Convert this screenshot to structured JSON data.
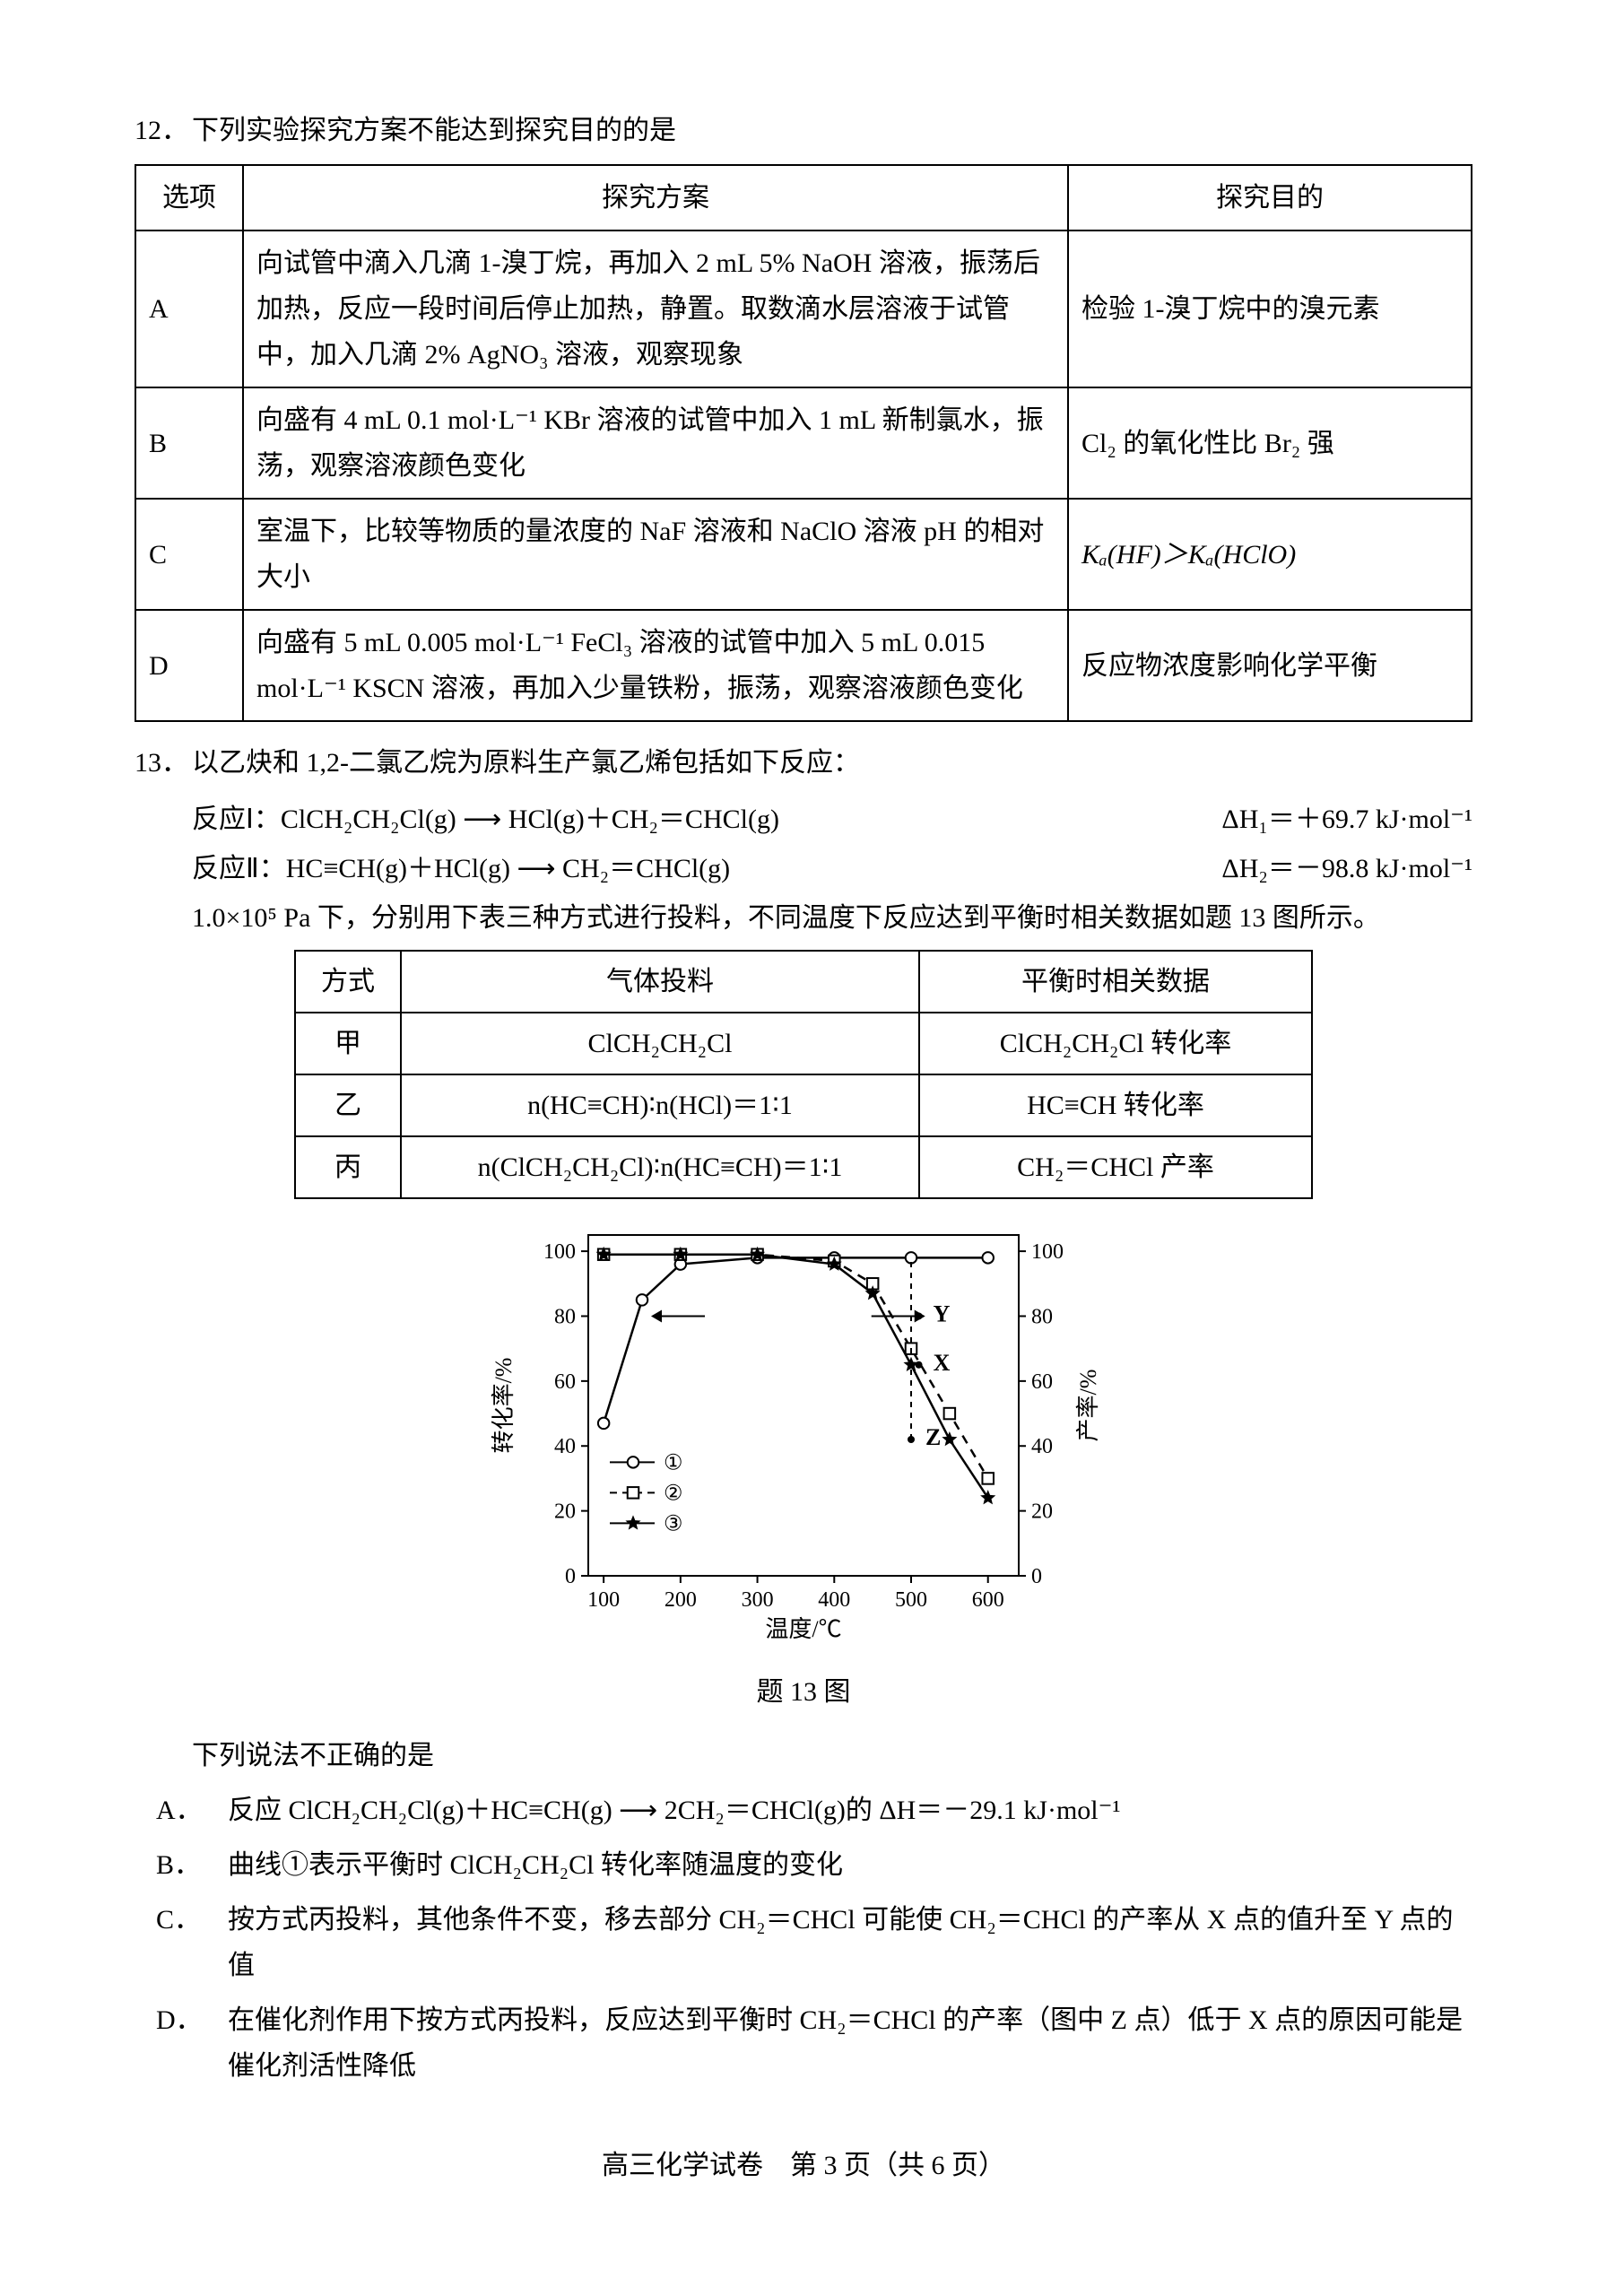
{
  "q12": {
    "number": "12．",
    "stem": "下列实验探究方案不能达到探究目的的是",
    "headers": [
      "选项",
      "探究方案",
      "探究目的"
    ],
    "rows": [
      {
        "opt": "A",
        "plan": "向试管中滴入几滴 1-溴丁烷，再加入 2 mL 5% NaOH 溶液，振荡后加热，反应一段时间后停止加热，静置。取数滴水层溶液于试管中，加入几滴 2% AgNO₃ 溶液，观察现象",
        "goal": "检验 1-溴丁烷中的溴元素"
      },
      {
        "opt": "B",
        "plan": "向盛有 4 mL 0.1 mol·L⁻¹ KBr 溶液的试管中加入 1 mL 新制氯水，振荡，观察溶液颜色变化",
        "goal": "Cl₂ 的氧化性比 Br₂ 强"
      },
      {
        "opt": "C",
        "plan": "室温下，比较等物质的量浓度的 NaF 溶液和 NaClO 溶液 pH 的相对大小",
        "goal": "Kₐ(HF)＞Kₐ(HClO)"
      },
      {
        "opt": "D",
        "plan": "向盛有 5 mL 0.005 mol·L⁻¹ FeCl₃ 溶液的试管中加入 5 mL 0.015 mol·L⁻¹ KSCN 溶液，再加入少量铁粉，振荡，观察溶液颜色变化",
        "goal": "反应物浓度影响化学平衡"
      }
    ]
  },
  "q13": {
    "number": "13．",
    "stem": "以乙炔和 1,2-二氯乙烷为原料生产氯乙烯包括如下反应：",
    "rxn1_label": "反应Ⅰ：",
    "rxn1_eq": "ClCH₂CH₂Cl(g)  ⟶  HCl(g)＋CH₂＝CHCl(g)",
    "rxn1_dH": "ΔH₁＝＋69.7 kJ·mol⁻¹",
    "rxn2_label": "反应Ⅱ：",
    "rxn2_eq": "HC≡CH(g)＋HCl(g)  ⟶  CH₂＝CHCl(g)",
    "rxn2_dH": "ΔH₂＝－98.8 kJ·mol⁻¹",
    "para": "1.0×10⁵ Pa 下，分别用下表三种方式进行投料，不同温度下反应达到平衡时相关数据如题 13 图所示。",
    "table_headers": [
      "方式",
      "气体投料",
      "平衡时相关数据"
    ],
    "table_rows": [
      {
        "m": "甲",
        "feed": "ClCH₂CH₂Cl",
        "data": "ClCH₂CH₂Cl 转化率"
      },
      {
        "m": "乙",
        "feed": "n(HC≡CH)∶n(HCl)＝1∶1",
        "data": "HC≡CH 转化率"
      },
      {
        "m": "丙",
        "feed": "n(ClCH₂CH₂Cl)∶n(HC≡CH)＝1∶1",
        "data": "CH₂＝CHCl 产率"
      }
    ],
    "chart": {
      "type": "line-scatter-dual-axis",
      "x_label": "温度/℃",
      "y_left_label": "转化率/%",
      "y_right_label": "产率/%",
      "x_ticks": [
        100,
        200,
        300,
        400,
        500,
        600
      ],
      "y_ticks": [
        0,
        20,
        40,
        60,
        80,
        100
      ],
      "xlim": [
        80,
        640
      ],
      "ylim": [
        0,
        105
      ],
      "background_color": "#ffffff",
      "axis_color": "#000000",
      "legend_items": [
        "①",
        "②",
        "③"
      ],
      "legend_markers": [
        "circle-open",
        "square-open",
        "star-filled"
      ],
      "annotations": [
        "X",
        "Y",
        "Z"
      ],
      "annotation_positions": {
        "Y": [
          510,
          80
        ],
        "X": [
          510,
          65
        ],
        "Z": [
          500,
          42
        ]
      },
      "series": [
        {
          "name": "①",
          "marker": "circle-open",
          "linestyle": "solid",
          "points": [
            [
              100,
              47
            ],
            [
              150,
              85
            ],
            [
              200,
              96
            ],
            [
              300,
              98
            ],
            [
              400,
              98
            ],
            [
              500,
              98
            ],
            [
              600,
              98
            ]
          ]
        },
        {
          "name": "②",
          "marker": "square-open",
          "linestyle": "dashed",
          "points": [
            [
              100,
              99
            ],
            [
              200,
              99
            ],
            [
              300,
              99
            ],
            [
              400,
              97
            ],
            [
              450,
              90
            ],
            [
              500,
              70
            ],
            [
              550,
              50
            ],
            [
              600,
              30
            ]
          ]
        },
        {
          "name": "③",
          "marker": "star-filled",
          "linestyle": "solid",
          "points": [
            [
              100,
              99
            ],
            [
              200,
              99
            ],
            [
              300,
              99
            ],
            [
              400,
              96
            ],
            [
              450,
              87
            ],
            [
              500,
              65
            ],
            [
              550,
              42
            ],
            [
              600,
              24
            ]
          ]
        }
      ],
      "caption": "题 13 图",
      "line_color": "#000000",
      "marker_size": 10
    },
    "prompt": "下列说法不正确的是",
    "options": {
      "A": "反应 ClCH₂CH₂Cl(g)＋HC≡CH(g) ⟶ 2CH₂＝CHCl(g)的 ΔH＝－29.1 kJ·mol⁻¹",
      "B": "曲线①表示平衡时 ClCH₂CH₂Cl 转化率随温度的变化",
      "C": "按方式丙投料，其他条件不变，移去部分 CH₂＝CHCl 可能使 CH₂＝CHCl 的产率从 X 点的值升至 Y 点的值",
      "D": "在催化剂作用下按方式丙投料，反应达到平衡时 CH₂＝CHCl 的产率（图中 Z 点）低于 X 点的原因可能是催化剂活性降低"
    }
  },
  "footer": "高三化学试卷　第 3 页（共 6 页）"
}
